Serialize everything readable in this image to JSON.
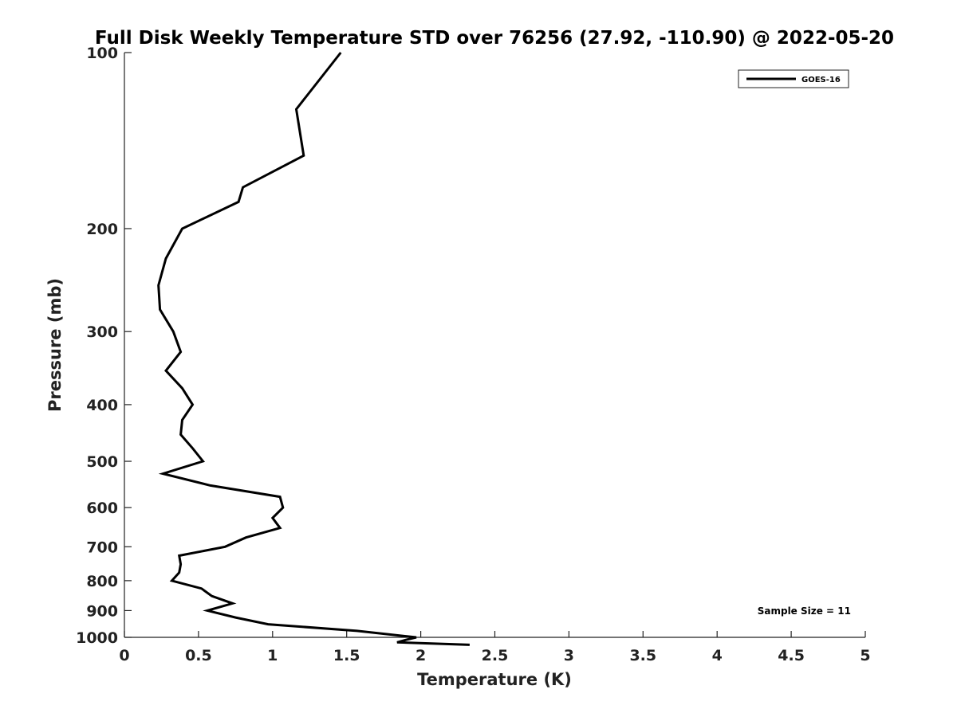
{
  "chart_data": {
    "type": "line",
    "title": "Full Disk Weekly Temperature STD over 76256 (27.92, -110.90) @ 2022-05-20",
    "xlabel": "Temperature (K)",
    "ylabel": "Pressure (mb)",
    "xlim": [
      0,
      5
    ],
    "ylim": [
      100,
      1000
    ],
    "y_scale": "log",
    "y_reversed": true,
    "x_ticks": [
      "0",
      "0.5",
      "1",
      "1.5",
      "2",
      "2.5",
      "3",
      "3.5",
      "4",
      "4.5",
      "5"
    ],
    "y_ticks": [
      "100",
      "200",
      "300",
      "400",
      "500",
      "600",
      "700",
      "800",
      "900",
      "1000"
    ],
    "grid": false,
    "legend": {
      "position": "top-right",
      "entries": [
        "GOES-16"
      ]
    },
    "annotation": "Sample Size = 11",
    "series": [
      {
        "name": "GOES-16",
        "color": "#000000",
        "x": [
          1.46,
          1.16,
          1.21,
          0.8,
          0.77,
          0.39,
          0.28,
          0.23,
          0.24,
          0.33,
          0.38,
          0.28,
          0.39,
          0.46,
          0.39,
          0.38,
          0.46,
          0.53,
          0.26,
          0.58,
          1.05,
          1.07,
          1.0,
          1.05,
          0.82,
          0.68,
          0.37,
          0.38,
          0.37,
          0.32,
          0.52,
          0.59,
          0.73,
          0.56,
          0.75,
          0.97,
          1.57,
          1.97,
          1.9,
          1.84,
          2.33
        ],
        "y": [
          100,
          125,
          150,
          170,
          180,
          200,
          225,
          250,
          275,
          300,
          325,
          350,
          375,
          400,
          425,
          450,
          475,
          500,
          525,
          550,
          575,
          600,
          625,
          650,
          675,
          700,
          725,
          750,
          775,
          800,
          825,
          850,
          875,
          900,
          925,
          950,
          975,
          1000,
          1010,
          1020,
          1030
        ]
      }
    ]
  }
}
